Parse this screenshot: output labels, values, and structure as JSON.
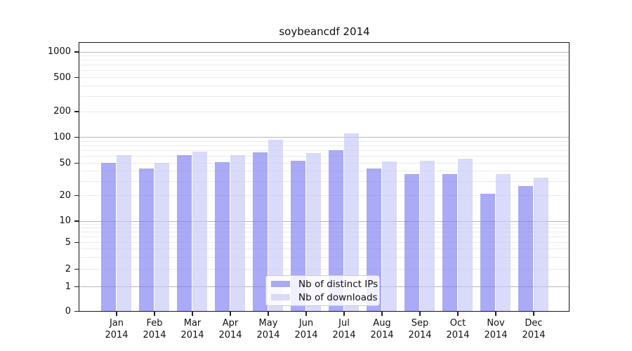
{
  "chart_data": {
    "type": "bar",
    "title": "soybeancdf 2014",
    "categories": [
      "Jan 2014",
      "Feb 2014",
      "Mar 2014",
      "Apr 2014",
      "May 2014",
      "Jun 2014",
      "Jul 2014",
      "Aug 2014",
      "Sep 2014",
      "Oct 2014",
      "Nov 2014",
      "Dec 2014"
    ],
    "series": [
      {
        "name": "Nb of distinct IPs",
        "color": "#a9a9f2",
        "fill": "rgba(124,124,242,0.65)",
        "values": [
          50,
          43,
          61,
          51,
          66,
          53,
          70,
          43,
          36,
          36,
          21,
          26
        ]
      },
      {
        "name": "Nb of downloads",
        "color": "#dadaf9",
        "fill": "rgba(198,198,248,0.65)",
        "values": [
          61,
          50,
          67,
          61,
          93,
          65,
          110,
          52,
          53,
          56,
          36,
          33
        ]
      }
    ],
    "yscale": "symlog",
    "yticks": [
      1000,
      500,
      200,
      100,
      50,
      20,
      10,
      5,
      2,
      1,
      0
    ],
    "ylim": [
      0,
      1300
    ],
    "xlabel": "",
    "ylabel": "",
    "grid": true,
    "legend_position": "lower center",
    "grid_major_color": "#b8b8b8",
    "grid_minor_color": "#ebebeb"
  }
}
